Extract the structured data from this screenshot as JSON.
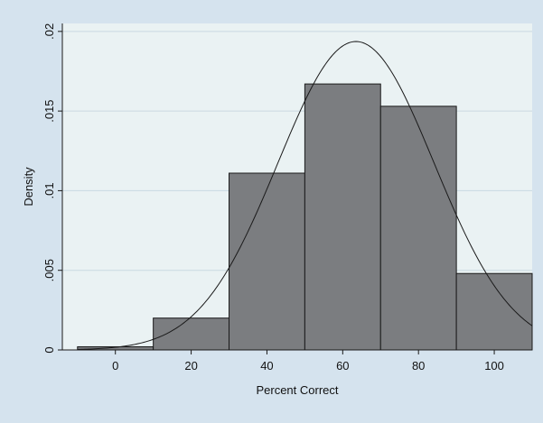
{
  "chart_data": {
    "type": "bar",
    "title": "",
    "xlabel": "Percent Correct",
    "ylabel": "Density",
    "xlim": [
      -14,
      110
    ],
    "ylim": [
      0,
      0.0205
    ],
    "x_ticks": [
      {
        "value": 0,
        "label": "0"
      },
      {
        "value": 20,
        "label": "20"
      },
      {
        "value": 40,
        "label": "40"
      },
      {
        "value": 60,
        "label": "60"
      },
      {
        "value": 80,
        "label": "80"
      },
      {
        "value": 100,
        "label": "100"
      }
    ],
    "y_ticks": [
      {
        "value": 0,
        "label": "0"
      },
      {
        "value": 0.005,
        "label": ".005"
      },
      {
        "value": 0.01,
        "label": ".01"
      },
      {
        "value": 0.015,
        "label": ".015"
      },
      {
        "value": 0.02,
        "label": ".02"
      }
    ],
    "bins": [
      {
        "start": -10,
        "end": 10,
        "density": 0.0002
      },
      {
        "start": 10,
        "end": 30,
        "density": 0.002
      },
      {
        "start": 30,
        "end": 50,
        "density": 0.0111
      },
      {
        "start": 50,
        "end": 70,
        "density": 0.0167
      },
      {
        "start": 70,
        "end": 90,
        "density": 0.0153
      },
      {
        "start": 90,
        "end": 110,
        "density": 0.0048
      }
    ],
    "normal_curve": {
      "mean": 63.5,
      "sd": 20.6
    },
    "grid": true,
    "legend": "none",
    "colors": {
      "background": "#d5e3ee",
      "plot_background": "#eaf2f3",
      "bar_fill": "#7b7d80",
      "bar_stroke": "#1a1a1a",
      "grid": "#c9d9e2",
      "curve": "#1a1a1a"
    }
  }
}
